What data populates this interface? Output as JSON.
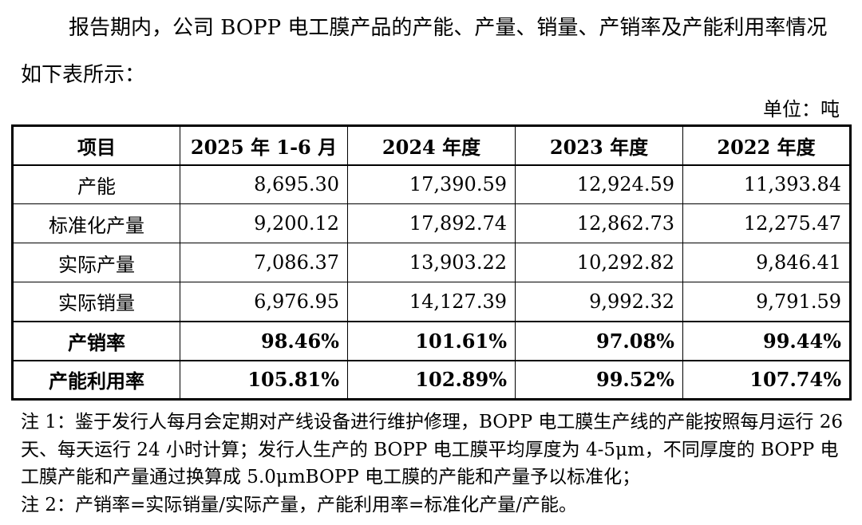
{
  "intro": "报告期内，公司 BOPP 电工膜产品的产能、产量、销量、产销率及产能利用率情况如下表所示：",
  "unit": "单位：吨",
  "table": {
    "headers": [
      "项目",
      "2025 年 1-6 月",
      "2024 年度",
      "2023 年度",
      "2022 年度"
    ],
    "rows": [
      {
        "label": "产能",
        "values": [
          "8,695.30",
          "17,390.59",
          "12,924.59",
          "11,393.84"
        ]
      },
      {
        "label": "标准化产量",
        "values": [
          "9,200.12",
          "17,892.74",
          "12,862.73",
          "12,275.47"
        ]
      },
      {
        "label": "实际产量",
        "values": [
          "7,086.37",
          "13,903.22",
          "10,292.82",
          "9,846.41"
        ]
      },
      {
        "label": "实际销量",
        "values": [
          "6,976.95",
          "14,127.39",
          "9,992.32",
          "9,791.59"
        ]
      },
      {
        "label": "产销率",
        "values": [
          "98.46%",
          "101.61%",
          "97.08%",
          "99.44%"
        ]
      },
      {
        "label": "产能利用率",
        "values": [
          "105.81%",
          "102.89%",
          "99.52%",
          "107.74%"
        ]
      }
    ]
  },
  "notes": {
    "note1": "注 1：鉴于发行人每月会定期对产线设备进行维护修理，BOPP 电工膜生产线的产能按照每月运行 26 天、每天运行 24 小时计算；发行人生产的 BOPP 电工膜平均厚度为 4-5μm，不同厚度的 BOPP 电工膜产能和产量通过换算成 5.0μmBOPP 电工膜的产能和产量予以标准化；",
    "note2": "注 2：产销率=实际销量/实际产量，产能利用率=标准化产量/产能。"
  }
}
